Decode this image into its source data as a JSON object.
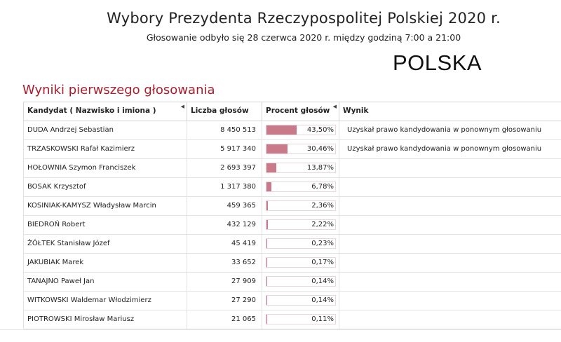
{
  "header": {
    "title": "Wybory Prezydenta Rzeczypospolitej Polskiej 2020 r.",
    "subtitle": "Głosowanie odbyło się 28 czerwca 2020 r. między godziną 7:00 a 21:00",
    "country": "POLSKA"
  },
  "section_title": "Wyniki pierwszego głosowania",
  "table": {
    "columns": [
      "Kandydat ( Nazwisko i imiona )",
      "Liczba głosów",
      "Procent głosów",
      "Wynik"
    ],
    "rows": [
      {
        "name": "DUDA Andrzej Sebastian",
        "votes": "8 450 513",
        "percent": "43,50%",
        "pct_value": 43.5,
        "result": "Uzyskał prawo kandydowania w ponownym głosowaniu"
      },
      {
        "name": "TRZASKOWSKI Rafał Kazimierz",
        "votes": "5 917 340",
        "percent": "30,46%",
        "pct_value": 30.46,
        "result": "Uzyskał prawo kandydowania w ponownym głosowaniu"
      },
      {
        "name": "HOŁOWNIA Szymon Franciszek",
        "votes": "2 693 397",
        "percent": "13,87%",
        "pct_value": 13.87,
        "result": ""
      },
      {
        "name": "BOSAK Krzysztof",
        "votes": "1 317 380",
        "percent": "6,78%",
        "pct_value": 6.78,
        "result": ""
      },
      {
        "name": "KOSINIAK-KAMYSZ Władysław Marcin",
        "votes": "459 365",
        "percent": "2,36%",
        "pct_value": 2.36,
        "result": ""
      },
      {
        "name": "BIEDROŃ Robert",
        "votes": "432 129",
        "percent": "2,22%",
        "pct_value": 2.22,
        "result": ""
      },
      {
        "name": "ŻÓŁTEK Stanisław Józef",
        "votes": "45 419",
        "percent": "0,23%",
        "pct_value": 0.23,
        "result": ""
      },
      {
        "name": "JAKUBIAK Marek",
        "votes": "33 652",
        "percent": "0,17%",
        "pct_value": 0.17,
        "result": ""
      },
      {
        "name": "TANAJNO Paweł Jan",
        "votes": "27 909",
        "percent": "0,14%",
        "pct_value": 0.14,
        "result": ""
      },
      {
        "name": "WITKOWSKI Waldemar Włodzimierz",
        "votes": "27 290",
        "percent": "0,14%",
        "pct_value": 0.14,
        "result": ""
      },
      {
        "name": "PIOTROWSKI Mirosław Mariusz",
        "votes": "21 065",
        "percent": "0,11%",
        "pct_value": 0.11,
        "result": ""
      }
    ]
  },
  "colors": {
    "section_title": "#a81e2d",
    "bar_fill": "#c87a8a"
  },
  "icons": {
    "sort": "sort-triangle-icon"
  }
}
